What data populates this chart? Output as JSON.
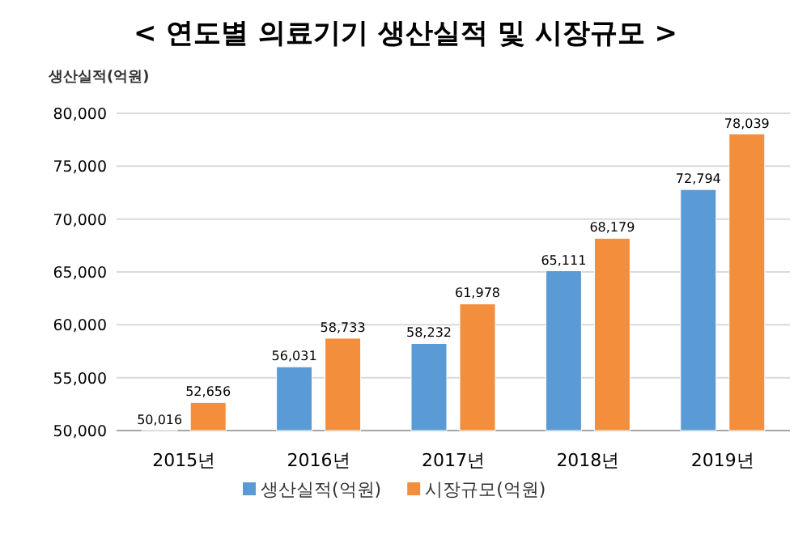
{
  "chart_data": {
    "type": "bar",
    "title": "< 연도별 의료기기 생산실적 및 시장규모 >",
    "ylabel": "생산실적(억원)",
    "categories": [
      "2015년",
      "2016년",
      "2017년",
      "2018년",
      "2019년"
    ],
    "series": [
      {
        "name": "생산실적(억원)",
        "color": "#5b9bd5",
        "values": [
          50016,
          56031,
          58232,
          65111,
          72794
        ],
        "value_labels": [
          "50,016",
          "56,031",
          "58,232",
          "65,111",
          "72,794"
        ]
      },
      {
        "name": "시장규모(억원)",
        "color": "#f28e3c",
        "values": [
          52656,
          58733,
          61978,
          68179,
          78039
        ],
        "value_labels": [
          "52,656",
          "58,733",
          "61,978",
          "68,179",
          "78,039"
        ]
      }
    ],
    "ylim": [
      50000,
      80000
    ],
    "yticks": [
      {
        "value": 50000,
        "label": "50,000"
      },
      {
        "value": 55000,
        "label": "55,000"
      },
      {
        "value": 60000,
        "label": "60,000"
      },
      {
        "value": 65000,
        "label": "65,000"
      },
      {
        "value": 70000,
        "label": "70,000"
      },
      {
        "value": 75000,
        "label": "75,000"
      },
      {
        "value": 80000,
        "label": "80,000"
      }
    ],
    "grid": "y",
    "legend": "bottom"
  }
}
